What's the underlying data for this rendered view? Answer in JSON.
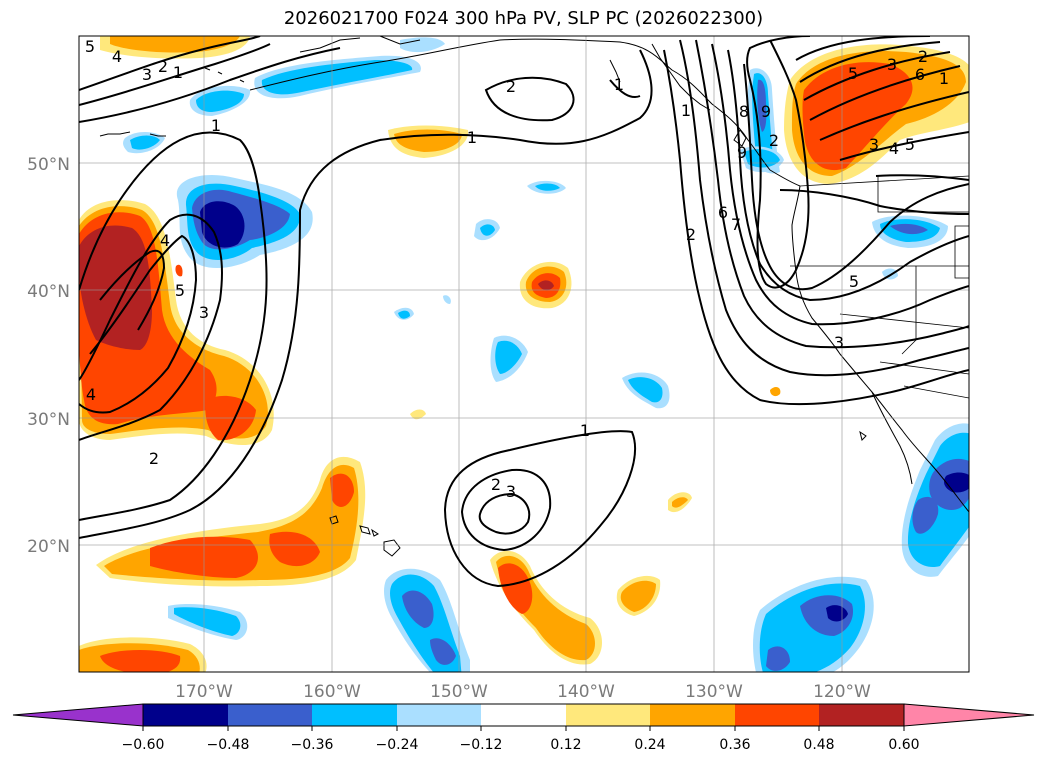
{
  "title": "2026021700 F024 300 hPa PV, SLP PC (2026022300)",
  "map": {
    "lat_labels": [
      "50°N",
      "40°N",
      "30°N",
      "20°N"
    ],
    "lon_labels": [
      "170°W",
      "160°W",
      "150°W",
      "140°W",
      "130°W",
      "120°W"
    ],
    "contour_labels": [
      "5",
      "4",
      "3",
      "2",
      "1",
      "2",
      "1",
      "1",
      "1",
      "4",
      "5",
      "3",
      "2",
      "4",
      "1",
      "2",
      "3",
      "3",
      "2",
      "1",
      "8",
      "9",
      "6",
      "9",
      "7",
      "2",
      "5",
      "3",
      "2",
      "1",
      "6",
      "3",
      "5",
      "4",
      "5"
    ]
  },
  "colorbar": {
    "tick_labels": [
      "−0.60",
      "−0.48",
      "−0.36",
      "−0.24",
      "−0.12",
      "0.12",
      "0.24",
      "0.36",
      "0.48",
      "0.60"
    ],
    "colors": {
      "under": "#9932cc",
      "bins": [
        "#00008b",
        "#3a5fcd",
        "#00bfff",
        "#aadfff",
        "#ffffff",
        "#ffe87c",
        "#ffa500",
        "#ff4500",
        "#b22222"
      ],
      "over": "#ff85a8"
    }
  }
}
